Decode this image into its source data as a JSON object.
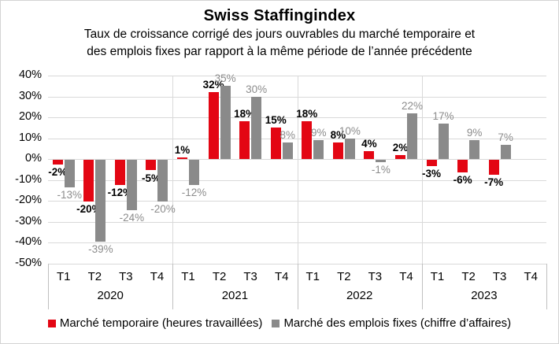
{
  "header": {
    "title": "Swiss Staffingindex",
    "subtitle_lines": [
      "Taux de croissance corrigé des jours ouvrables du marché temporaire et",
      "des emplois fixes par rapport à la même période de l’année précédente"
    ]
  },
  "chart_data": {
    "type": "bar",
    "title": "Swiss Staffingindex",
    "subtitle": "Taux de croissance corrigé des jours ouvrables du marché temporaire et des emplois fixes par rapport à la même période de l’année précédente",
    "unit": "%",
    "groups": [
      {
        "year": "2020",
        "quarters": [
          "T1",
          "T2",
          "T3",
          "T4"
        ]
      },
      {
        "year": "2021",
        "quarters": [
          "T1",
          "T2",
          "T3",
          "T4"
        ]
      },
      {
        "year": "2022",
        "quarters": [
          "T1",
          "T2",
          "T3",
          "T4"
        ]
      },
      {
        "year": "2023",
        "quarters": [
          "T1",
          "T2",
          "T3",
          "T4"
        ]
      }
    ],
    "categories": [
      "2020 T1",
      "2020 T2",
      "2020 T3",
      "2020 T4",
      "2021 T1",
      "2021 T2",
      "2021 T3",
      "2021 T4",
      "2022 T1",
      "2022 T2",
      "2022 T3",
      "2022 T4",
      "2023 T1",
      "2023 T2",
      "2023 T3",
      "2023 T4"
    ],
    "series": [
      {
        "name": "Marché temporaire (heures travaillées)",
        "color": "#e30613",
        "label_color": "#000000",
        "label_bold": true,
        "values": [
          -2,
          -20,
          -12,
          -5,
          1,
          32,
          18,
          15,
          18,
          8,
          4,
          2,
          -3,
          -6,
          -7,
          null
        ]
      },
      {
        "name": "Marché des emplois fixes (chiffre d’affaires)",
        "color": "#8a8a8a",
        "label_color": "#8c8c8c",
        "label_bold": false,
        "values": [
          -13,
          -39,
          -24,
          -20,
          -12,
          35,
          30,
          8,
          9,
          10,
          -1,
          22,
          17,
          9,
          7,
          null
        ]
      }
    ],
    "ylim": [
      -50,
      40
    ],
    "yticks": [
      40,
      30,
      20,
      10,
      0,
      -10,
      -20,
      -30,
      -40,
      -50
    ],
    "ytick_suffix": "%",
    "grid": true,
    "legend_position": "bottom"
  },
  "colors": {
    "gridline": "#d9d9d9",
    "plot_separator": "#d9d9d9",
    "axis_table_line": "#bfbfbf",
    "frame_border": "#d4d4d4",
    "background": "#ffffff"
  }
}
